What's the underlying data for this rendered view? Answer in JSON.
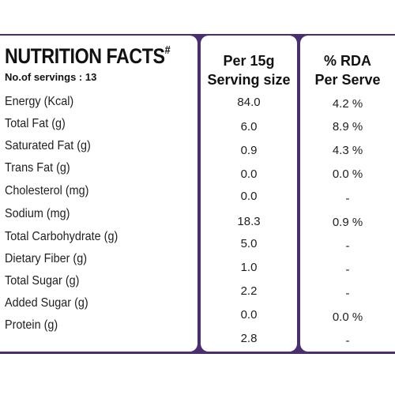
{
  "title": "NUTRITION FACTS",
  "title_mark": "#",
  "servings": "No.of servings : 13",
  "headers": {
    "per_line1": "Per 15g",
    "per_line2": "Serving size",
    "rda_line1": "% RDA",
    "rda_line2": "Per Serve"
  },
  "rows": [
    {
      "label": "Energy (Kcal)",
      "value": "84.0",
      "rda": "4.2 %"
    },
    {
      "label": "Total Fat (g)",
      "value": "6.0",
      "rda": "8.9 %"
    },
    {
      "label": "Saturated Fat (g)",
      "value": "0.9",
      "rda": "4.3 %"
    },
    {
      "label": "Trans Fat (g)",
      "value": "0.0",
      "rda": "0.0 %"
    },
    {
      "label": "Cholesterol (mg)",
      "value": "0.0",
      "rda": "-"
    },
    {
      "label": "Sodium (mg)",
      "value": "18.3",
      "rda": "0.9 %"
    },
    {
      "label": "Total Carbohydrate (g)",
      "value": "5.0",
      "rda": "-"
    },
    {
      "label": "Dietary Fiber (g)",
      "value": "1.0",
      "rda": "-"
    },
    {
      "label": "Total Sugar (g)",
      "value": "2.2",
      "rda": "-"
    },
    {
      "label": "Added Sugar (g)",
      "value": "0.0",
      "rda": "0.0 %"
    },
    {
      "label": "Protein (g)",
      "value": "2.8",
      "rda": "-"
    }
  ],
  "colors": {
    "background_band": "#4a2f6e",
    "panel": "#ffffff",
    "text": "#1a1a1a"
  }
}
